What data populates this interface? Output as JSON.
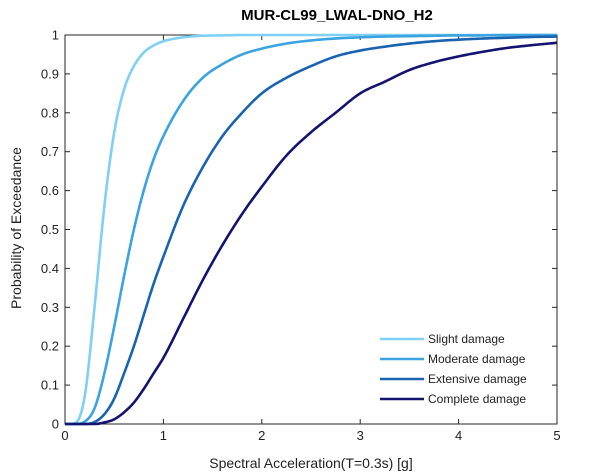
{
  "chart_data": {
    "type": "line",
    "title": "MUR-CL99_LWAL-DNO_H2",
    "xlabel": "Spectral Acceleration(T=0.3s) [g]",
    "ylabel": "Probability of Exceedance",
    "xlim": [
      0,
      5
    ],
    "ylim": [
      0,
      1
    ],
    "xticks": [
      "0",
      "1",
      "2",
      "3",
      "4",
      "5"
    ],
    "yticks": [
      "0",
      "0.1",
      "0.2",
      "0.3",
      "0.4",
      "0.5",
      "0.6",
      "0.7",
      "0.8",
      "0.9",
      "1"
    ],
    "grid": false,
    "legend_position": "bottom-right",
    "x": [
      0,
      0.1,
      0.2,
      0.3,
      0.4,
      0.5,
      0.6,
      0.7,
      0.8,
      0.9,
      1.0,
      1.2,
      1.4,
      1.6,
      1.8,
      2.0,
      2.25,
      2.5,
      2.75,
      3.0,
      3.25,
      3.5,
      3.75,
      4.0,
      4.25,
      4.5,
      4.75,
      5.0
    ],
    "series": [
      {
        "name": "Slight damage",
        "color": "#7fd0f4",
        "values": [
          0,
          0.002,
          0.07,
          0.3,
          0.56,
          0.75,
          0.86,
          0.92,
          0.955,
          0.973,
          0.984,
          0.994,
          0.998,
          0.999,
          1.0,
          1.0,
          1.0,
          1.0,
          1.0,
          1.0,
          1.0,
          1.0,
          1.0,
          1.0,
          1.0,
          1.0,
          1.0,
          1.0
        ]
      },
      {
        "name": "Moderate damage",
        "color": "#3ba3e0",
        "values": [
          0,
          0,
          0.006,
          0.04,
          0.13,
          0.25,
          0.38,
          0.5,
          0.6,
          0.68,
          0.74,
          0.83,
          0.89,
          0.925,
          0.95,
          0.965,
          0.978,
          0.986,
          0.991,
          0.994,
          0.996,
          0.997,
          0.998,
          0.999,
          0.999,
          1.0,
          1.0,
          1.0
        ]
      },
      {
        "name": "Extensive damage",
        "color": "#1a63b0",
        "values": [
          0,
          0,
          0,
          0.005,
          0.025,
          0.065,
          0.13,
          0.2,
          0.28,
          0.36,
          0.43,
          0.56,
          0.66,
          0.74,
          0.8,
          0.85,
          0.89,
          0.92,
          0.945,
          0.96,
          0.97,
          0.978,
          0.984,
          0.988,
          0.991,
          0.993,
          0.995,
          0.996
        ]
      },
      {
        "name": "Complete damage",
        "color": "#141470",
        "values": [
          0,
          0,
          0,
          0,
          0.004,
          0.012,
          0.03,
          0.055,
          0.09,
          0.13,
          0.17,
          0.27,
          0.37,
          0.46,
          0.54,
          0.61,
          0.69,
          0.75,
          0.8,
          0.85,
          0.88,
          0.91,
          0.93,
          0.945,
          0.957,
          0.967,
          0.974,
          0.98
        ]
      }
    ]
  }
}
